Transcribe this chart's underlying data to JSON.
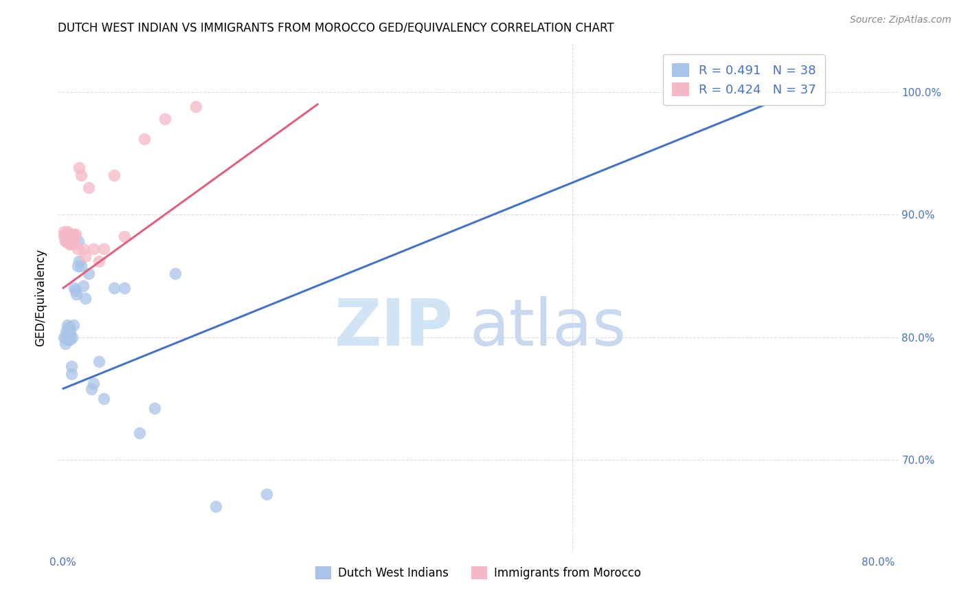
{
  "title": "DUTCH WEST INDIAN VS IMMIGRANTS FROM MOROCCO GED/EQUIVALENCY CORRELATION CHART",
  "source": "Source: ZipAtlas.com",
  "ylabel": "GED/Equivalency",
  "xlim": [
    -0.005,
    0.82
  ],
  "ylim": [
    0.625,
    1.04
  ],
  "xticks": [
    0.0,
    0.1,
    0.2,
    0.3,
    0.4,
    0.5,
    0.6,
    0.7,
    0.8
  ],
  "xtick_labels": [
    "0.0%",
    "",
    "",
    "",
    "",
    "",
    "",
    "",
    "80.0%"
  ],
  "yticks": [
    0.7,
    0.8,
    0.9,
    1.0
  ],
  "ytick_labels": [
    "70.0%",
    "80.0%",
    "90.0%",
    "100.0%"
  ],
  "blue_color": "#A8C4E8",
  "pink_color": "#F5B8C8",
  "blue_line_color": "#4472C4",
  "pink_line_color": "#E06080",
  "legend_text_color": "#4472C4",
  "legend_blue_label": "R = 0.491   N = 38",
  "legend_pink_label": "R = 0.424   N = 37",
  "legend1_label": "Dutch West Indians",
  "legend2_label": "Immigrants from Morocco",
  "blue_x": [
    0.001,
    0.002,
    0.003,
    0.003,
    0.004,
    0.004,
    0.005,
    0.005,
    0.006,
    0.006,
    0.007,
    0.007,
    0.008,
    0.008,
    0.009,
    0.01,
    0.011,
    0.012,
    0.013,
    0.014,
    0.015,
    0.016,
    0.018,
    0.02,
    0.022,
    0.025,
    0.028,
    0.03,
    0.035,
    0.04,
    0.05,
    0.06,
    0.075,
    0.09,
    0.11,
    0.15,
    0.2,
    0.72
  ],
  "blue_y": [
    0.8,
    0.795,
    0.805,
    0.8,
    0.798,
    0.81,
    0.8,
    0.805,
    0.802,
    0.808,
    0.798,
    0.805,
    0.77,
    0.776,
    0.8,
    0.81,
    0.84,
    0.838,
    0.835,
    0.858,
    0.878,
    0.862,
    0.858,
    0.842,
    0.832,
    0.852,
    0.758,
    0.762,
    0.78,
    0.75,
    0.84,
    0.84,
    0.722,
    0.742,
    0.852,
    0.662,
    0.672,
    1.0
  ],
  "pink_x": [
    0.001,
    0.001,
    0.002,
    0.002,
    0.003,
    0.003,
    0.004,
    0.004,
    0.005,
    0.005,
    0.006,
    0.006,
    0.006,
    0.007,
    0.007,
    0.007,
    0.008,
    0.008,
    0.009,
    0.01,
    0.01,
    0.011,
    0.012,
    0.014,
    0.016,
    0.018,
    0.02,
    0.022,
    0.025,
    0.03,
    0.035,
    0.04,
    0.05,
    0.06,
    0.08,
    0.1,
    0.13
  ],
  "pink_y": [
    0.886,
    0.882,
    0.884,
    0.878,
    0.884,
    0.878,
    0.886,
    0.878,
    0.884,
    0.878,
    0.884,
    0.88,
    0.876,
    0.884,
    0.88,
    0.876,
    0.884,
    0.878,
    0.884,
    0.88,
    0.876,
    0.884,
    0.884,
    0.872,
    0.938,
    0.932,
    0.872,
    0.866,
    0.922,
    0.872,
    0.862,
    0.872,
    0.932,
    0.882,
    0.962,
    0.978,
    0.988
  ],
  "blue_line_x": [
    0.0,
    0.72
  ],
  "blue_line_y": [
    0.758,
    1.0
  ],
  "pink_line_x": [
    0.0,
    0.25
  ],
  "pink_line_y": [
    0.84,
    0.99
  ],
  "grid_color": "#DDDDDD",
  "grid_vline_x": 0.5
}
